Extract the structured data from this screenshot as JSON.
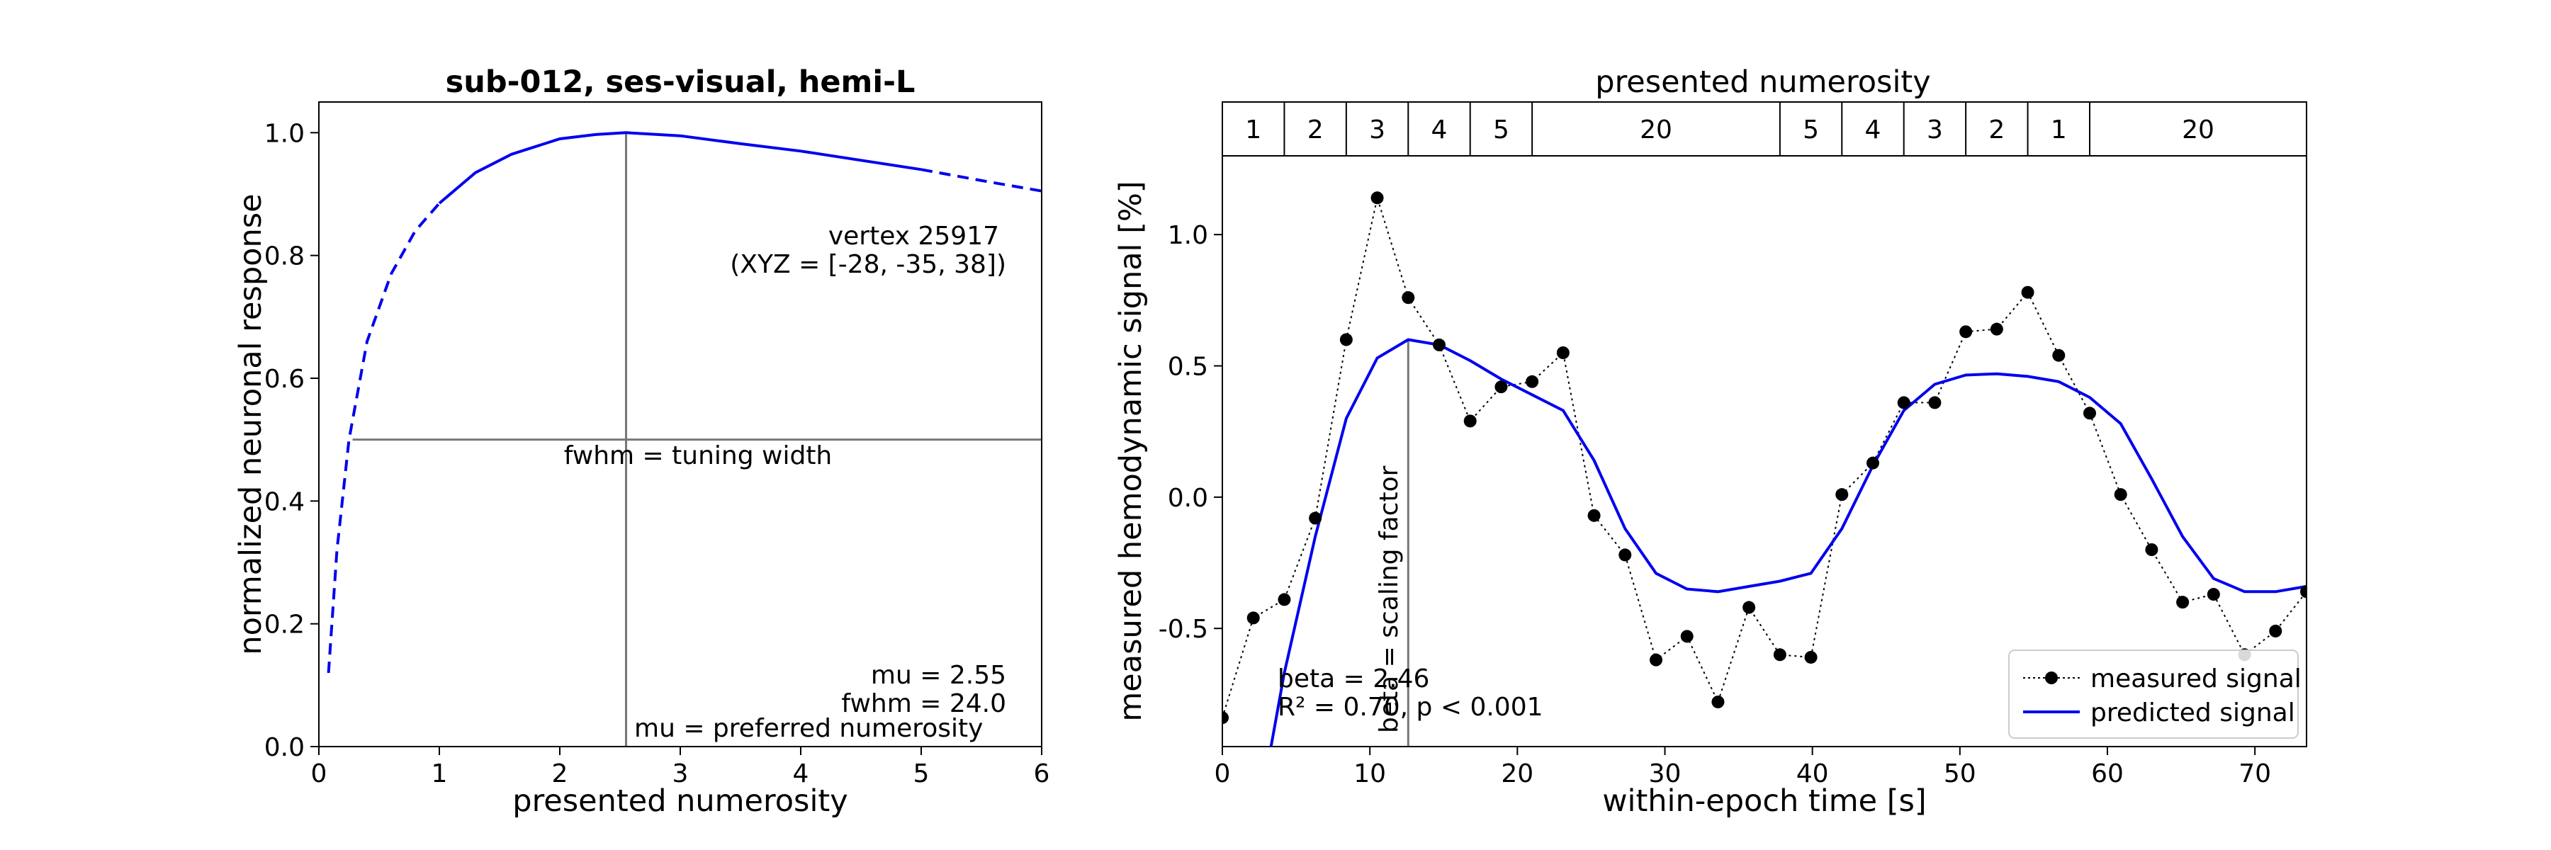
{
  "chart_data": [
    {
      "type": "line",
      "title": "sub-012, ses-visual, hemi-L",
      "xlabel": "presented numerosity",
      "ylabel": "normalized neuronal response",
      "xlim": [
        0,
        6
      ],
      "ylim": [
        0,
        1.05
      ],
      "xticks": [
        "0",
        "1",
        "2",
        "3",
        "4",
        "5",
        "6"
      ],
      "yticks": [
        "0.0",
        "0.2",
        "0.4",
        "0.6",
        "0.8",
        "1.0"
      ],
      "grid": false,
      "mu": 2.55,
      "fwhm": 24.0,
      "half_max_x_range": [
        0.28,
        6
      ],
      "solid_x_range": [
        1,
        5
      ],
      "curve": {
        "x": [
          0.08,
          0.15,
          0.25,
          0.4,
          0.6,
          0.8,
          1.0,
          1.3,
          1.6,
          2.0,
          2.3,
          2.55,
          3.0,
          3.5,
          4.0,
          4.5,
          5.0,
          5.5,
          6.0
        ],
        "y": [
          0.12,
          0.32,
          0.5,
          0.66,
          0.77,
          0.84,
          0.885,
          0.935,
          0.965,
          0.99,
          0.997,
          1.0,
          0.995,
          0.982,
          0.97,
          0.955,
          0.94,
          0.922,
          0.905
        ]
      },
      "color": "#0000ee",
      "annotations": {
        "vertex_line1": "vertex 25917",
        "vertex_line2": "(XYZ = [-28, -35, 38])",
        "fwhm_label": "fwhm = tuning width",
        "mu_value": "mu = 2.55",
        "fwhm_value": "fwhm = 24.0",
        "mu_label": "mu = preferred numerosity"
      }
    },
    {
      "type": "line",
      "title": "presented numerosity",
      "xlabel": "within-epoch time [s]",
      "ylabel": "measured hemodynamic signal [%]",
      "xlim": [
        0,
        73.5
      ],
      "ylim": [
        -0.95,
        1.3
      ],
      "xticks": [
        "0",
        "10",
        "20",
        "30",
        "40",
        "50",
        "60",
        "70"
      ],
      "yticks": [
        "-0.5",
        "0.0",
        "0.5",
        "1.0"
      ],
      "grid": false,
      "legend_position": "bottom-right",
      "numerosity_blocks": [
        {
          "label": "1",
          "start": 0,
          "end": 4.2
        },
        {
          "label": "2",
          "start": 4.2,
          "end": 8.4
        },
        {
          "label": "3",
          "start": 8.4,
          "end": 12.6
        },
        {
          "label": "4",
          "start": 12.6,
          "end": 16.8
        },
        {
          "label": "5",
          "start": 16.8,
          "end": 21
        },
        {
          "label": "20",
          "start": 21,
          "end": 37.8
        },
        {
          "label": "5",
          "start": 37.8,
          "end": 42
        },
        {
          "label": "4",
          "start": 42,
          "end": 46.2
        },
        {
          "label": "3",
          "start": 46.2,
          "end": 50.4
        },
        {
          "label": "2",
          "start": 50.4,
          "end": 54.6
        },
        {
          "label": "1",
          "start": 54.6,
          "end": 58.8
        },
        {
          "label": "20",
          "start": 58.8,
          "end": 73.5
        }
      ],
      "beta_line_x": 12.6,
      "beta_line_top": 0.6,
      "series": [
        {
          "name": "measured signal",
          "color": "#000000",
          "x": [
            0,
            2.1,
            4.2,
            6.3,
            8.4,
            10.5,
            12.6,
            14.7,
            16.8,
            18.9,
            21,
            23.1,
            25.2,
            27.3,
            29.4,
            31.5,
            33.6,
            35.7,
            37.8,
            39.9,
            42,
            44.1,
            46.2,
            48.3,
            50.4,
            52.5,
            54.6,
            56.7,
            58.8,
            60.9,
            63,
            65.1,
            67.2,
            69.3,
            71.4,
            73.5
          ],
          "y": [
            -0.84,
            -0.46,
            -0.39,
            -0.08,
            0.6,
            1.14,
            0.76,
            0.58,
            0.29,
            0.42,
            0.44,
            0.55,
            -0.07,
            -0.22,
            -0.62,
            -0.53,
            -0.78,
            -0.42,
            -0.6,
            -0.61,
            0.01,
            0.13,
            0.36,
            0.36,
            0.63,
            0.64,
            0.78,
            0.54,
            0.32,
            0.01,
            -0.2,
            -0.4,
            -0.37,
            -0.6,
            -0.51,
            -0.36
          ]
        },
        {
          "name": "predicted signal",
          "color": "#0000ee",
          "x": [
            3.3,
            4.2,
            6.3,
            8.4,
            10.5,
            12.6,
            14.7,
            16.8,
            18.9,
            21,
            23.1,
            25.2,
            27.3,
            29.4,
            31.5,
            33.6,
            35.7,
            37.8,
            39.9,
            42,
            44.1,
            46.2,
            48.3,
            50.4,
            52.5,
            54.6,
            56.7,
            58.8,
            60.9,
            63,
            65.1,
            67.2,
            69.3,
            71.4,
            73.5
          ],
          "y": [
            -0.95,
            -0.67,
            -0.15,
            0.3,
            0.53,
            0.6,
            0.58,
            0.52,
            0.45,
            0.39,
            0.33,
            0.14,
            -0.12,
            -0.29,
            -0.35,
            -0.36,
            -0.34,
            -0.32,
            -0.29,
            -0.12,
            0.12,
            0.33,
            0.43,
            0.465,
            0.47,
            0.46,
            0.44,
            0.38,
            0.28,
            0.07,
            -0.15,
            -0.31,
            -0.36,
            -0.36,
            -0.34
          ]
        }
      ],
      "annotations": {
        "beta_label": "beta = scaling factor",
        "beta_value": "beta = 2.46",
        "stats": "R² = 0.70, p < 0.001"
      }
    }
  ]
}
